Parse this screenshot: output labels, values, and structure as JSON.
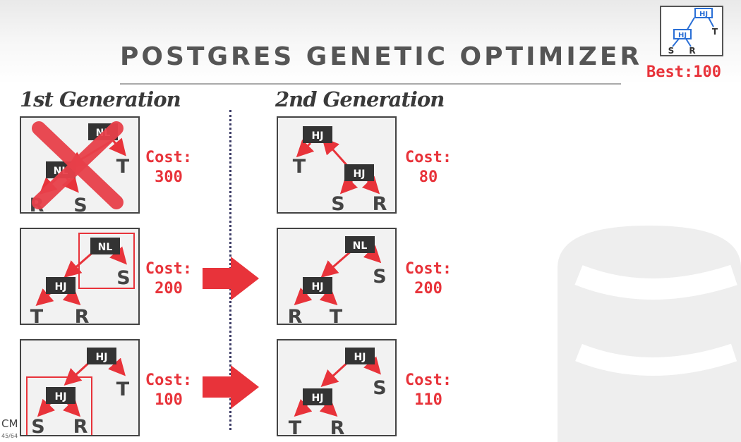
{
  "slide": {
    "title": "POSTGRES GENETIC OPTIMIZER",
    "footer": "CM",
    "footer_sub": "45/64"
  },
  "best": {
    "label": "Best:100",
    "tree": {
      "join_top": "HJ",
      "join_inner": "HJ",
      "leaves": [
        "S",
        "R",
        "T"
      ]
    }
  },
  "generations": [
    {
      "label": "1st Generation",
      "plans": [
        {
          "cost": "Cost:\n300",
          "eliminated": true,
          "top": "NL",
          "inner": "NL",
          "leaves": [
            "R",
            "S",
            "T"
          ]
        },
        {
          "cost": "Cost:\n200",
          "highlighted": "top-subtree",
          "top": "NL",
          "inner": "HJ",
          "leaves": [
            "T",
            "R",
            "S"
          ]
        },
        {
          "cost": "Cost:\n100",
          "highlighted": "inner-subtree",
          "top": "HJ",
          "inner": "HJ",
          "leaves": [
            "S",
            "R",
            "T"
          ]
        }
      ]
    },
    {
      "label": "2nd Generation",
      "plans": [
        {
          "cost": "Cost:\n80",
          "top": "HJ",
          "inner": "HJ",
          "leaves": [
            "T",
            "S",
            "R"
          ]
        },
        {
          "cost": "Cost:\n200",
          "top": "NL",
          "inner": "HJ",
          "leaves": [
            "R",
            "T",
            "S"
          ]
        },
        {
          "cost": "Cost:\n110",
          "top": "HJ",
          "inner": "HJ",
          "leaves": [
            "T",
            "R",
            "S"
          ]
        }
      ]
    }
  ],
  "colors": {
    "accent": "#e8333a",
    "node_fill": "#333333",
    "panel_fill": "#f2f2f2"
  }
}
